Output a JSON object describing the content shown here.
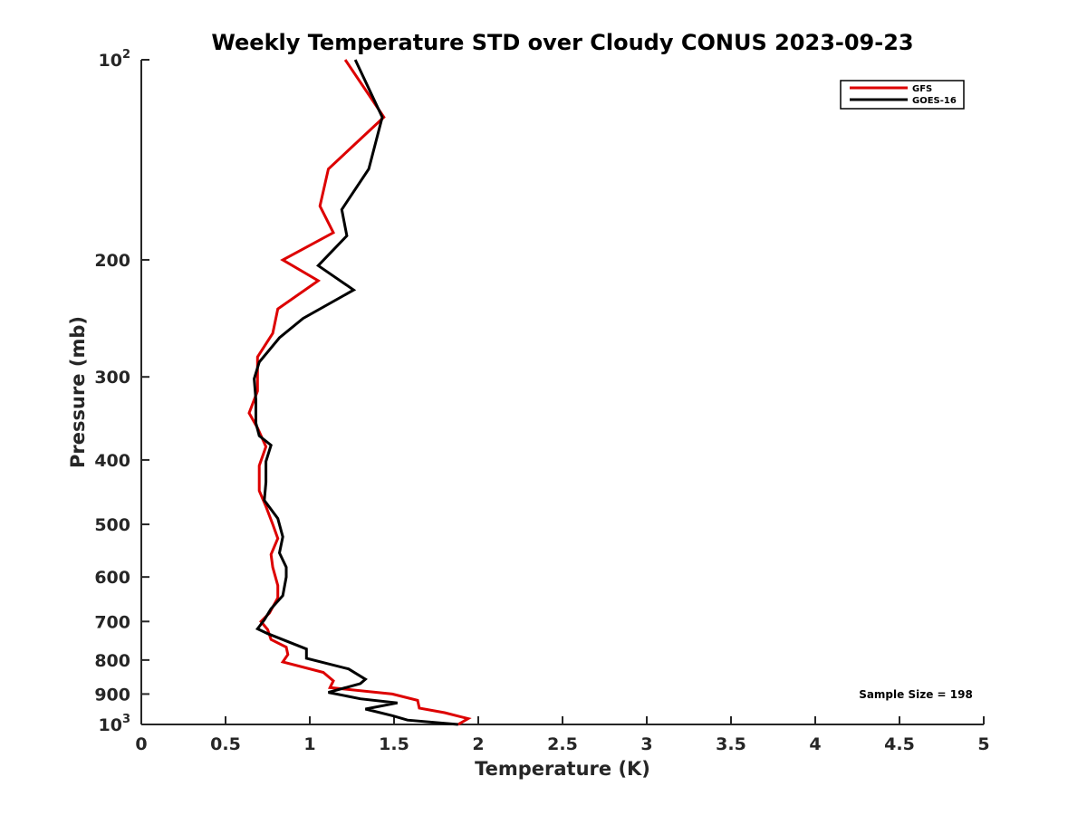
{
  "chart_data": {
    "type": "line",
    "title": "Weekly Temperature STD over Cloudy CONUS 2023-09-23",
    "xlabel": "Temperature (K)",
    "ylabel": "Pressure (mb)",
    "xlim": [
      0,
      5
    ],
    "ylim": [
      100,
      1000
    ],
    "y_scale": "log",
    "y_reversed": true,
    "x_ticks": [
      "0",
      "0.5",
      "1",
      "1.5",
      "2",
      "2.5",
      "3",
      "3.5",
      "4",
      "4.5",
      "5"
    ],
    "x_tick_values": [
      0,
      0.5,
      1,
      1.5,
      2,
      2.5,
      3,
      3.5,
      4,
      4.5,
      5
    ],
    "y_ticks": [
      {
        "value": 100,
        "base": "10",
        "exp": "2"
      },
      {
        "value": 200,
        "label": "200"
      },
      {
        "value": 300,
        "label": "300"
      },
      {
        "value": 400,
        "label": "400"
      },
      {
        "value": 500,
        "label": "500"
      },
      {
        "value": 600,
        "label": "600"
      },
      {
        "value": 700,
        "label": "700"
      },
      {
        "value": 800,
        "label": "800"
      },
      {
        "value": 900,
        "label": "900"
      },
      {
        "value": 1000,
        "base": "10",
        "exp": "3"
      }
    ],
    "grid": false,
    "legend_position": "top-right",
    "annotation": "Sample Size = 198",
    "series": [
      {
        "name": "GFS",
        "color": "#dd0000",
        "points": [
          [
            1.21,
            100
          ],
          [
            1.44,
            122
          ],
          [
            1.11,
            146
          ],
          [
            1.06,
            166
          ],
          [
            1.14,
            182
          ],
          [
            0.84,
            200
          ],
          [
            1.05,
            215
          ],
          [
            0.81,
            237
          ],
          [
            0.78,
            258
          ],
          [
            0.69,
            280
          ],
          [
            0.69,
            296
          ],
          [
            0.69,
            315
          ],
          [
            0.64,
            340
          ],
          [
            0.69,
            358
          ],
          [
            0.74,
            382
          ],
          [
            0.7,
            408
          ],
          [
            0.7,
            445
          ],
          [
            0.74,
            470
          ],
          [
            0.78,
            500
          ],
          [
            0.81,
            525
          ],
          [
            0.77,
            555
          ],
          [
            0.78,
            580
          ],
          [
            0.81,
            618
          ],
          [
            0.81,
            645
          ],
          [
            0.76,
            680
          ],
          [
            0.71,
            700
          ],
          [
            0.75,
            720
          ],
          [
            0.77,
            745
          ],
          [
            0.86,
            765
          ],
          [
            0.87,
            785
          ],
          [
            0.84,
            805
          ],
          [
            1.08,
            835
          ],
          [
            1.14,
            860
          ],
          [
            1.12,
            880
          ],
          [
            1.49,
            900
          ],
          [
            1.64,
            920
          ],
          [
            1.65,
            945
          ],
          [
            1.8,
            960
          ],
          [
            1.94,
            980
          ],
          [
            1.88,
            1000
          ]
        ]
      },
      {
        "name": "GOES-16",
        "color": "#000000",
        "points": [
          [
            1.27,
            100
          ],
          [
            1.43,
            122
          ],
          [
            1.35,
            146
          ],
          [
            1.19,
            168
          ],
          [
            1.22,
            184
          ],
          [
            1.05,
            204
          ],
          [
            1.26,
            222
          ],
          [
            0.96,
            245
          ],
          [
            0.82,
            262
          ],
          [
            0.7,
            285
          ],
          [
            0.67,
            302
          ],
          [
            0.68,
            325
          ],
          [
            0.68,
            352
          ],
          [
            0.7,
            368
          ],
          [
            0.77,
            380
          ],
          [
            0.74,
            402
          ],
          [
            0.74,
            432
          ],
          [
            0.73,
            460
          ],
          [
            0.81,
            490
          ],
          [
            0.84,
            522
          ],
          [
            0.82,
            552
          ],
          [
            0.86,
            580
          ],
          [
            0.86,
            600
          ],
          [
            0.84,
            640
          ],
          [
            0.77,
            670
          ],
          [
            0.73,
            696
          ],
          [
            0.69,
            718
          ],
          [
            0.75,
            730
          ],
          [
            0.98,
            770
          ],
          [
            0.98,
            795
          ],
          [
            1.23,
            825
          ],
          [
            1.33,
            855
          ],
          [
            1.3,
            868
          ],
          [
            1.11,
            895
          ],
          [
            1.3,
            915
          ],
          [
            1.52,
            928
          ],
          [
            1.33,
            948
          ],
          [
            1.49,
            970
          ],
          [
            1.58,
            985
          ],
          [
            1.88,
            1000
          ]
        ]
      }
    ]
  }
}
